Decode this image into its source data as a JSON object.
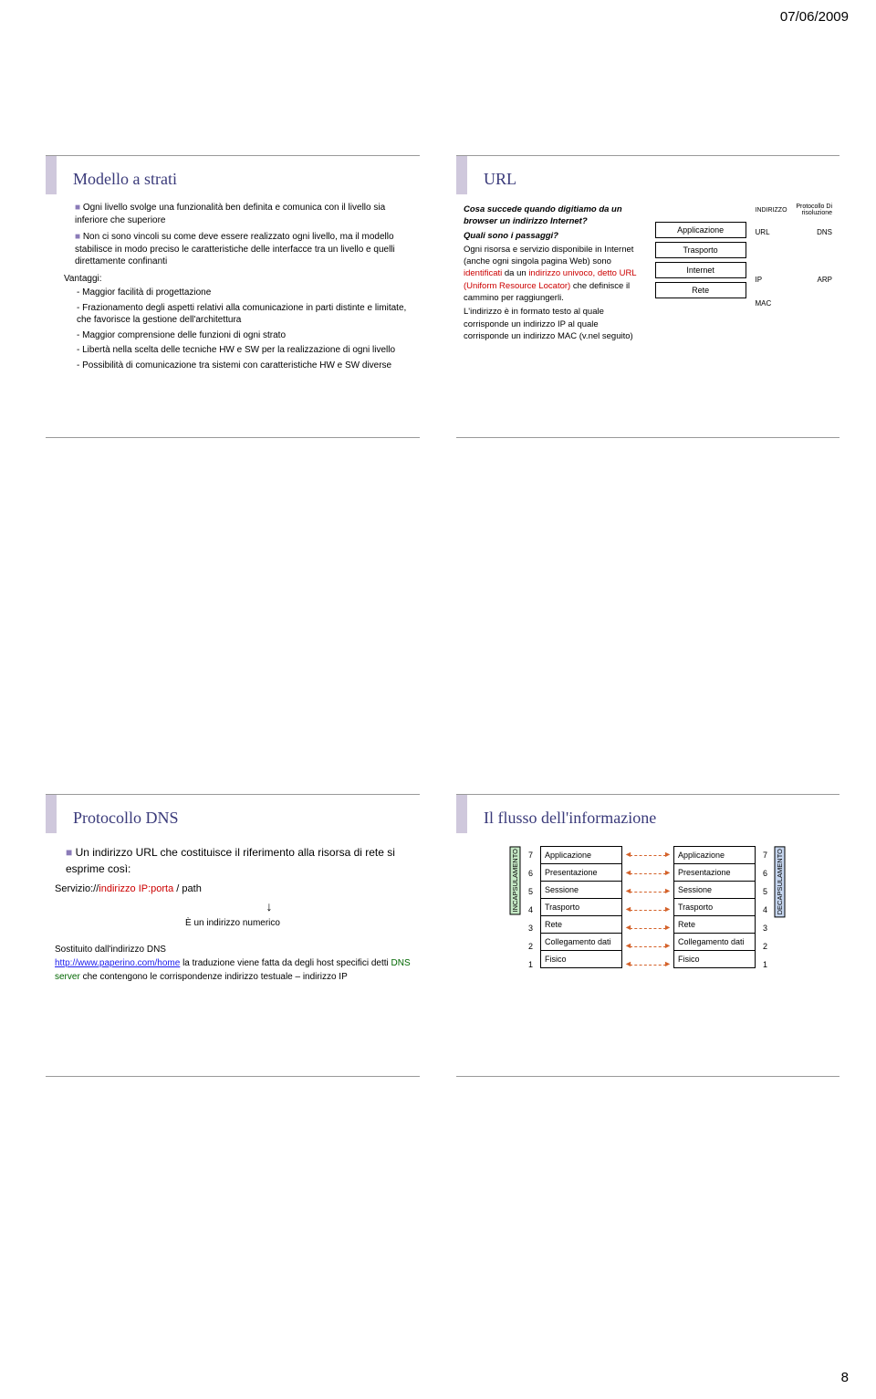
{
  "header_date": "07/06/2009",
  "page_number": "8",
  "slide1": {
    "title": "Modello a strati",
    "bullets": [
      "Ogni livello svolge una funzionalità ben definita e comunica con il livello sia inferiore che superiore",
      "Non ci sono vincoli su come deve essere realizzato ogni livello, ma il modello stabilisce in modo preciso le caratteristiche delle interfacce tra un livello e quelli direttamente confinanti"
    ],
    "vantaggi_label": "Vantaggi:",
    "vantaggi": [
      "Maggior facilità di progettazione",
      "Frazionamento degli aspetti relativi alla comunicazione in parti distinte e limitate, che favorisce la gestione dell'architettura",
      "Maggior comprensione delle funzioni di ogni strato",
      "Libertà nella scelta delle tecniche HW e SW per la realizzazione di ogni livello",
      "Possibilità di comunicazione tra sistemi con caratteristiche HW e SW diverse"
    ]
  },
  "slide2": {
    "title": "URL",
    "q1": "Cosa succede quando digitiamo da un browser un indirizzo Internet?",
    "q2": "Quali sono i passaggi?",
    "text_before": "Ogni risorsa e servizio disponibile in Internet (anche ogni singola pagina Web) sono ",
    "identificati": "identificati",
    "text_mid1": " da un ",
    "univoco": "indirizzo univoco, detto URL (Uniform Resource Locator)",
    "text_after": " che definisce il cammino per raggiungerli.",
    "text_ip": "L'indirizzo è in formato testo al quale corrisponde un indirizzo IP al quale corrisponde un indirizzo MAC (v.nel seguito)",
    "header_ind": "INDIRIZZO",
    "header_prot": "Protocollo Di risoluzione",
    "layers": [
      "Applicazione",
      "Trasporto",
      "Internet",
      "Rete"
    ],
    "side_rows": [
      {
        "left": "URL",
        "right": "DNS"
      },
      {
        "left": "",
        "right": ""
      },
      {
        "left": "IP",
        "right": "ARP"
      },
      {
        "left": "MAC",
        "right": ""
      }
    ]
  },
  "slide3": {
    "title": "Protocollo DNS",
    "bullet": "Un indirizzo URL che costituisce il riferimento alla risorsa di rete si esprime così:",
    "schema_pre": "Servizio://",
    "schema_red": "indirizzo IP:porta",
    "schema_post": " / path",
    "note": "È un indirizzo numerico",
    "sost": "Sostituito dall'indirizzo DNS",
    "url_ex": "http://www.paperino.com/home",
    "trad": " la traduzione viene fatta da degli host specifici detti ",
    "dns_server": "DNS server",
    "trad2": " che contengono le corrispondenze indirizzo testuale – indirizzo IP"
  },
  "slide4": {
    "title": "Il flusso dell'informazione",
    "inc_label": "INCAPSULAMENTO",
    "dec_label": "DECAPSULAMENTO",
    "numbers": [
      "7",
      "6",
      "5",
      "4",
      "3",
      "2",
      "1"
    ],
    "layers": [
      "Applicazione",
      "Presentazione",
      "Sessione",
      "Trasporto",
      "Rete",
      "Collegamento dati",
      "Fisico"
    ]
  }
}
